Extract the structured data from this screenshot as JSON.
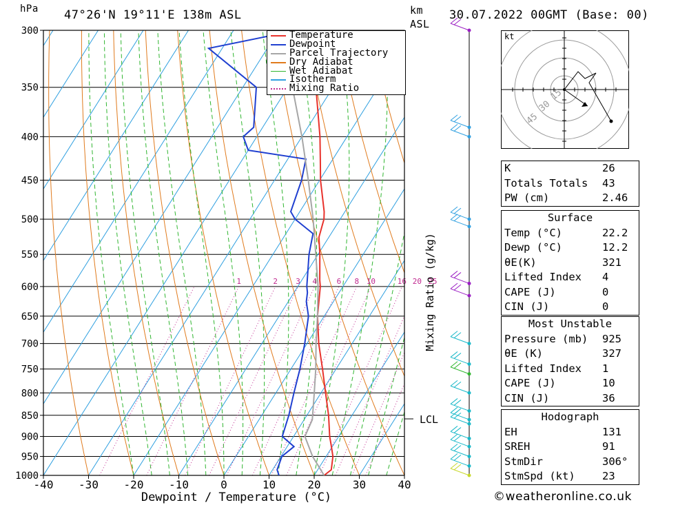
{
  "header": {
    "pressure_unit": "hPa",
    "location": "47°26'N  19°11'E  138m  ASL",
    "height_unit": "km",
    "height_ref": "ASL",
    "datetime": "30.07.2022  00GMT  (Base: 00)"
  },
  "axes": {
    "xlabel": "Dewpoint / Temperature (°C)",
    "mixing_ratio_label": "Mixing Ratio (g/kg)",
    "lcl_label": "LCL",
    "pressure_levels": [
      300,
      350,
      400,
      450,
      500,
      550,
      600,
      650,
      700,
      750,
      800,
      850,
      900,
      950,
      1000
    ],
    "temp_ticks": [
      -40,
      -30,
      -20,
      -10,
      0,
      10,
      20,
      30,
      40
    ],
    "mixing_ratio_values": [
      "1",
      "2",
      "3",
      "4",
      "6",
      "8",
      "10",
      "16",
      "20",
      "25"
    ]
  },
  "legend": [
    {
      "label": "Temperature",
      "color": "#e8312b"
    },
    {
      "label": "Dewpoint",
      "color": "#1f3fd0"
    },
    {
      "label": "Parcel Trajectory",
      "color": "#a6a6a6"
    },
    {
      "label": "Dry Adiabat",
      "color": "#e07a1c"
    },
    {
      "label": "Wet Adiabat",
      "color": "#2fb52f"
    },
    {
      "label": "Isotherm",
      "color": "#2e9fe0"
    },
    {
      "label": "Mixing Ratio",
      "color": "#c0288f"
    }
  ],
  "hodograph": {
    "unit_label": "kt",
    "ring_labels": [
      "15",
      "30",
      "45"
    ]
  },
  "indices": {
    "rows": [
      {
        "label": "K",
        "value": "26"
      },
      {
        "label": "Totals Totals",
        "value": "43"
      },
      {
        "label": "PW (cm)",
        "value": "2.46"
      }
    ]
  },
  "surface": {
    "title": "Surface",
    "rows": [
      {
        "label": "Temp (°C)",
        "value": "22.2"
      },
      {
        "label": "Dewp (°C)",
        "value": "12.2"
      },
      {
        "label": "θE(K)",
        "value": "321"
      },
      {
        "label": "Lifted Index",
        "value": "4"
      },
      {
        "label": "CAPE (J)",
        "value": "0"
      },
      {
        "label": "CIN (J)",
        "value": "0"
      }
    ]
  },
  "most_unstable": {
    "title": "Most Unstable",
    "rows": [
      {
        "label": "Pressure (mb)",
        "value": "925"
      },
      {
        "label": "θE (K)",
        "value": "327"
      },
      {
        "label": "Lifted Index",
        "value": "1"
      },
      {
        "label": "CAPE (J)",
        "value": "10"
      },
      {
        "label": "CIN (J)",
        "value": "36"
      }
    ]
  },
  "hodograph_params": {
    "title": "Hodograph",
    "rows": [
      {
        "label": "EH",
        "value": "131"
      },
      {
        "label": "SREH",
        "value": "91"
      },
      {
        "label": "StmDir",
        "value": "306°"
      },
      {
        "label": "StmSpd (kt)",
        "value": "23"
      }
    ]
  },
  "copyright": "©weatheronline.co.uk",
  "chart_data": {
    "type": "line",
    "xlabel": "Dewpoint / Temperature (°C)",
    "ylabel": "hPa",
    "xlim": [
      -40,
      40
    ],
    "ylim": [
      1000,
      300
    ],
    "y_scale": "log",
    "skewed": true,
    "series": [
      {
        "name": "Temperature",
        "color": "#e8312b",
        "p": [
          1000,
          985,
          950,
          925,
          900,
          850,
          800,
          750,
          700,
          650,
          600,
          590,
          550,
          525,
          500,
          490,
          450,
          425,
          400,
          350,
          300
        ],
        "t": [
          22.2,
          23,
          21.5,
          19.8,
          18.0,
          14.8,
          11.0,
          7.0,
          2.6,
          -1.5,
          -5.0,
          -6.0,
          -9.6,
          -12.2,
          -13.6,
          -14.6,
          -19.8,
          -22.8,
          -26.0,
          -33.8,
          -42.0
        ]
      },
      {
        "name": "Dewpoint",
        "color": "#1f3fd0",
        "p": [
          1000,
          985,
          950,
          925,
          900,
          850,
          800,
          750,
          700,
          650,
          625,
          610,
          600,
          550,
          520,
          500,
          490,
          450,
          425,
          415,
          400,
          390,
          350,
          315,
          300
        ],
        "t": [
          12.2,
          11,
          10.2,
          11.5,
          7.5,
          6.0,
          4.0,
          2.0,
          -0.5,
          -3.5,
          -6.0,
          -7.0,
          -8.0,
          -12.0,
          -14.0,
          -20.0,
          -22.0,
          -24.0,
          -26.0,
          -40.0,
          -43.0,
          -42.0,
          -47.0,
          -63.0,
          -46.0
        ]
      },
      {
        "name": "Parcel Trajectory",
        "color": "#a6a6a6",
        "p": [
          1000,
          950,
          900,
          860,
          800,
          750,
          700,
          650,
          600,
          550,
          500,
          450,
          400,
          350,
          300
        ],
        "t": [
          22.2,
          17.0,
          12.5,
          11.8,
          8.5,
          5.5,
          2.0,
          -1.5,
          -5.5,
          -10.5,
          -16.0,
          -22.5,
          -30.0,
          -39.0,
          -50.0
        ]
      }
    ]
  }
}
